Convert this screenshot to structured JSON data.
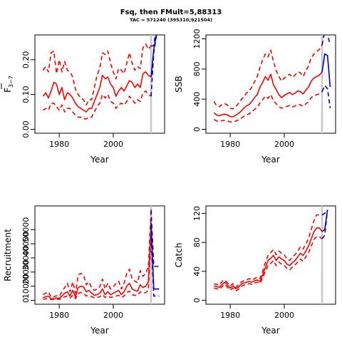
{
  "figure": {
    "title": "Fsq, then FMult=5,88313",
    "subtitle": "TAC = 571240 (395310;921504)"
  },
  "colors": {
    "historic": "#ff0000",
    "forecast": "#0000cc",
    "marker": "#c8c8c8"
  },
  "chart_data": [
    {
      "type": "line",
      "panel": "fbar",
      "ylabel_main": "F",
      "ylabel_sub": "3−7",
      "xlabel": "Year",
      "xlim": [
        1971,
        2019
      ],
      "ylim": [
        0,
        0.26
      ],
      "xticks": [
        1980,
        2000
      ],
      "xtick_labels": [
        "1980",
        "2000"
      ],
      "yticks": [
        0.0,
        0.1,
        0.2
      ],
      "ytick_labels": [
        "0.00",
        "0.10",
        "0.20"
      ],
      "marker_year": 2014,
      "historic_years": [
        1974,
        1975,
        1976,
        1977,
        1978,
        1979,
        1980,
        1981,
        1982,
        1983,
        1984,
        1985,
        1986,
        1987,
        1988,
        1989,
        1990,
        1991,
        1992,
        1993,
        1994,
        1995,
        1996,
        1997,
        1998,
        1999,
        2000,
        2001,
        2002,
        2003,
        2004,
        2005,
        2006,
        2007,
        2008,
        2009,
        2010,
        2011,
        2012,
        2013,
        2014
      ],
      "series": [
        {
          "role": "estimate",
          "style": "solid",
          "values": [
            0.095,
            0.105,
            0.09,
            0.11,
            0.135,
            0.13,
            0.1,
            0.12,
            0.085,
            0.105,
            0.1,
            0.09,
            0.075,
            0.065,
            0.06,
            0.055,
            0.05,
            0.06,
            0.06,
            0.08,
            0.1,
            0.12,
            0.155,
            0.145,
            0.15,
            0.13,
            0.12,
            0.095,
            0.11,
            0.12,
            0.11,
            0.125,
            0.14,
            0.135,
            0.12,
            0.13,
            0.12,
            0.16,
            0.165,
            0.155,
            0.15
          ]
        },
        {
          "role": "upper",
          "style": "dashed",
          "values": [
            0.17,
            0.18,
            0.165,
            0.22,
            0.225,
            0.16,
            0.2,
            0.165,
            0.195,
            0.17,
            0.165,
            0.15,
            0.115,
            0.1,
            0.09,
            0.085,
            0.07,
            0.085,
            0.085,
            0.12,
            0.155,
            0.175,
            0.22,
            0.215,
            0.225,
            0.19,
            0.165,
            0.145,
            0.175,
            0.17,
            0.16,
            0.19,
            0.22,
            0.19,
            0.17,
            0.18,
            0.175,
            0.235,
            0.245,
            0.23,
            0.24
          ]
        },
        {
          "role": "lower",
          "style": "dashed",
          "values": [
            0.055,
            0.06,
            0.055,
            0.075,
            0.075,
            0.065,
            0.055,
            0.07,
            0.05,
            0.06,
            0.06,
            0.05,
            0.04,
            0.035,
            0.035,
            0.03,
            0.03,
            0.035,
            0.035,
            0.05,
            0.065,
            0.075,
            0.1,
            0.09,
            0.1,
            0.08,
            0.075,
            0.06,
            0.07,
            0.075,
            0.07,
            0.08,
            0.095,
            0.085,
            0.075,
            0.085,
            0.08,
            0.105,
            0.11,
            0.1,
            0.095
          ]
        }
      ],
      "forecast_years": [
        2014,
        2015,
        2016
      ],
      "forecast_series": [
        {
          "role": "estimate",
          "style": "solid",
          "values": [
            0.15,
            0.23,
            0.275
          ]
        },
        {
          "role": "upper",
          "style": "dashed",
          "values": [
            0.24,
            0.24,
            0.3
          ]
        },
        {
          "role": "lower",
          "style": "dashed",
          "values": [
            0.095,
            0.22,
            0.27
          ]
        }
      ]
    },
    {
      "type": "line",
      "panel": "ssb",
      "ylabel": "SSB",
      "xlabel": "Year",
      "xlim": [
        1971,
        2019
      ],
      "ylim": [
        0,
        1200
      ],
      "xticks": [
        1980,
        2000
      ],
      "xtick_labels": [
        "1980",
        "2000"
      ],
      "yticks": [
        0,
        400,
        800,
        1200
      ],
      "ytick_labels": [
        "0",
        "400",
        "800",
        "1200"
      ],
      "marker_year": 2014,
      "historic_years": [
        1974,
        1975,
        1976,
        1977,
        1978,
        1979,
        1980,
        1981,
        1982,
        1983,
        1984,
        1985,
        1986,
        1987,
        1988,
        1989,
        1990,
        1991,
        1992,
        1993,
        1994,
        1995,
        1996,
        1997,
        1998,
        1999,
        2000,
        2001,
        2002,
        2003,
        2004,
        2005,
        2006,
        2007,
        2008,
        2009,
        2010,
        2011,
        2012,
        2013,
        2014
      ],
      "series": [
        {
          "role": "estimate",
          "style": "solid",
          "values": [
            220,
            190,
            180,
            195,
            200,
            190,
            170,
            165,
            185,
            210,
            240,
            280,
            310,
            330,
            370,
            420,
            460,
            560,
            620,
            700,
            650,
            730,
            590,
            530,
            460,
            420,
            450,
            470,
            490,
            460,
            480,
            510,
            500,
            470,
            520,
            560,
            640,
            680,
            700,
            720,
            760
          ]
        },
        {
          "role": "upper",
          "style": "dashed",
          "values": [
            370,
            310,
            300,
            330,
            340,
            320,
            280,
            270,
            300,
            340,
            390,
            430,
            480,
            510,
            560,
            630,
            700,
            820,
            920,
            1000,
            960,
            1050,
            900,
            780,
            700,
            640,
            680,
            710,
            730,
            690,
            720,
            760,
            750,
            700,
            780,
            840,
            950,
            1000,
            1030,
            1060,
            1120
          ]
        },
        {
          "role": "lower",
          "style": "dashed",
          "values": [
            130,
            110,
            105,
            115,
            118,
            110,
            100,
            95,
            108,
            125,
            145,
            170,
            190,
            205,
            230,
            265,
            290,
            350,
            390,
            440,
            410,
            460,
            380,
            340,
            300,
            280,
            290,
            305,
            315,
            295,
            310,
            330,
            325,
            305,
            340,
            365,
            420,
            445,
            460,
            470,
            500
          ]
        }
      ],
      "forecast_years": [
        2014,
        2015,
        2016,
        2017
      ],
      "forecast_series": [
        {
          "role": "estimate",
          "style": "solid",
          "values": [
            760,
            1000,
            980,
            560
          ]
        },
        {
          "role": "upper",
          "style": "dashed",
          "values": [
            1120,
            1300,
            1250,
            1130
          ]
        },
        {
          "role": "lower",
          "style": "dashed",
          "values": [
            500,
            580,
            540,
            280
          ]
        }
      ]
    },
    {
      "type": "line",
      "panel": "recruitment",
      "ylabel": "Recruitment",
      "xlabel": "Year",
      "xlim": [
        1971,
        2019
      ],
      "ylim": [
        0,
        64000
      ],
      "xticks": [
        1980,
        2000
      ],
      "xtick_labels": [
        "1980",
        "2000"
      ],
      "yticks": [
        0,
        10000,
        20000,
        30000,
        40000,
        50000
      ],
      "ytick_labels": [
        "0",
        "10000",
        "20000",
        "30000",
        "40000",
        "50000"
      ],
      "marker_year": 2014,
      "historic_years": [
        1974,
        1975,
        1976,
        1977,
        1978,
        1979,
        1980,
        1981,
        1982,
        1983,
        1984,
        1985,
        1986,
        1987,
        1988,
        1989,
        1990,
        1991,
        1992,
        1993,
        1994,
        1995,
        1996,
        1997,
        1998,
        1999,
        2000,
        2001,
        2002,
        2003,
        2004,
        2005,
        2006,
        2007,
        2008,
        2009,
        2010,
        2011,
        2012,
        2013,
        2014
      ],
      "series": [
        {
          "role": "estimate",
          "style": "solid",
          "values": [
            2000,
            2500,
            3000,
            1000,
            1200,
            1600,
            1400,
            3000,
            5000,
            6000,
            3000,
            7000,
            2500,
            9000,
            10000,
            9500,
            6000,
            7000,
            5000,
            3500,
            4000,
            5000,
            8000,
            4000,
            6000,
            4000,
            5000,
            6000,
            7000,
            4000,
            6000,
            10000,
            12000,
            8000,
            7000,
            6500,
            11000,
            9000,
            10000,
            13000,
            55000
          ]
        },
        {
          "role": "upper",
          "style": "dashed",
          "values": [
            4000,
            5000,
            6000,
            2200,
            2500,
            3200,
            2800,
            6000,
            9000,
            12000,
            6000,
            13000,
            5000,
            18000,
            19000,
            18000,
            11000,
            13000,
            9000,
            7000,
            8000,
            9500,
            15000,
            8000,
            12000,
            8000,
            9500,
            12000,
            13500,
            8000,
            12000,
            19000,
            22000,
            15000,
            13500,
            12500,
            21000,
            17000,
            19000,
            24000,
            64000
          ]
        },
        {
          "role": "lower",
          "style": "dashed",
          "values": [
            800,
            1000,
            1500,
            500,
            600,
            800,
            700,
            1500,
            2500,
            3000,
            1500,
            3500,
            1200,
            5000,
            5500,
            5000,
            3000,
            3500,
            2500,
            1800,
            2000,
            2500,
            4000,
            2000,
            3000,
            2000,
            2500,
            3000,
            3500,
            2000,
            3000,
            5500,
            6500,
            4000,
            3500,
            3500,
            6000,
            5000,
            5500,
            7000,
            45000
          ]
        }
      ],
      "forecast_years": [
        2014,
        2015,
        2016,
        2017
      ],
      "forecast_series": [
        {
          "role": "estimate",
          "style": "solid",
          "values": [
            55000,
            8000,
            8000,
            8000
          ]
        },
        {
          "role": "upper",
          "style": "dashed",
          "values": [
            64000,
            24000,
            24000,
            24000
          ]
        },
        {
          "role": "lower",
          "style": "dashed",
          "values": [
            45000,
            3000,
            3000,
            3000
          ]
        }
      ]
    },
    {
      "type": "line",
      "panel": "catch",
      "ylabel": "Catch",
      "xlabel": "Year",
      "xlim": [
        1971,
        2019
      ],
      "ylim": [
        0,
        125
      ],
      "xticks": [
        1980,
        2000
      ],
      "xtick_labels": [
        "1980",
        "2000"
      ],
      "yticks": [
        0,
        40,
        80,
        120
      ],
      "ytick_labels": [
        "0",
        "40",
        "80",
        "120"
      ],
      "marker_year": 2014,
      "historic_years": [
        1974,
        1975,
        1976,
        1977,
        1978,
        1979,
        1980,
        1981,
        1982,
        1983,
        1984,
        1985,
        1986,
        1987,
        1988,
        1989,
        1990,
        1991,
        1992,
        1993,
        1994,
        1995,
        1996,
        1997,
        1998,
        1999,
        2000,
        2001,
        2002,
        2003,
        2004,
        2005,
        2006,
        2007,
        2008,
        2009,
        2010,
        2011,
        2012,
        2013,
        2014
      ],
      "series": [
        {
          "role": "estimate",
          "style": "solid",
          "values": [
            20,
            19,
            18,
            22,
            25,
            21,
            17,
            20,
            16,
            18,
            22,
            24,
            25,
            26,
            25,
            27,
            28,
            26,
            35,
            45,
            55,
            58,
            62,
            55,
            60,
            57,
            55,
            50,
            48,
            52,
            55,
            60,
            65,
            62,
            68,
            75,
            85,
            95,
            100,
            100,
            95
          ]
        },
        {
          "role": "upper",
          "style": "dashed",
          "values": [
            23,
            22,
            21,
            26,
            28,
            24,
            20,
            23,
            18,
            21,
            25,
            27,
            28,
            30,
            28,
            30,
            32,
            30,
            40,
            52,
            62,
            66,
            70,
            63,
            68,
            65,
            63,
            57,
            55,
            60,
            63,
            68,
            74,
            71,
            78,
            86,
            98,
            110,
            118,
            118,
            118
          ]
        },
        {
          "role": "lower",
          "style": "dashed",
          "values": [
            17,
            16,
            15,
            19,
            22,
            18,
            14,
            17,
            13,
            15,
            19,
            21,
            22,
            23,
            22,
            24,
            25,
            23,
            31,
            40,
            48,
            51,
            55,
            48,
            53,
            50,
            48,
            44,
            42,
            46,
            49,
            53,
            57,
            54,
            60,
            66,
            75,
            84,
            88,
            88,
            85
          ]
        }
      ],
      "forecast_years": [
        2014,
        2015,
        2016
      ],
      "forecast_series": [
        {
          "role": "estimate",
          "style": "solid",
          "values": [
            95,
            98,
            125
          ]
        },
        {
          "role": "upper",
          "style": "dashed",
          "values": [
            118,
            120,
            125
          ]
        },
        {
          "role": "lower",
          "style": "dashed",
          "values": [
            85,
            90,
            125
          ]
        }
      ]
    }
  ]
}
